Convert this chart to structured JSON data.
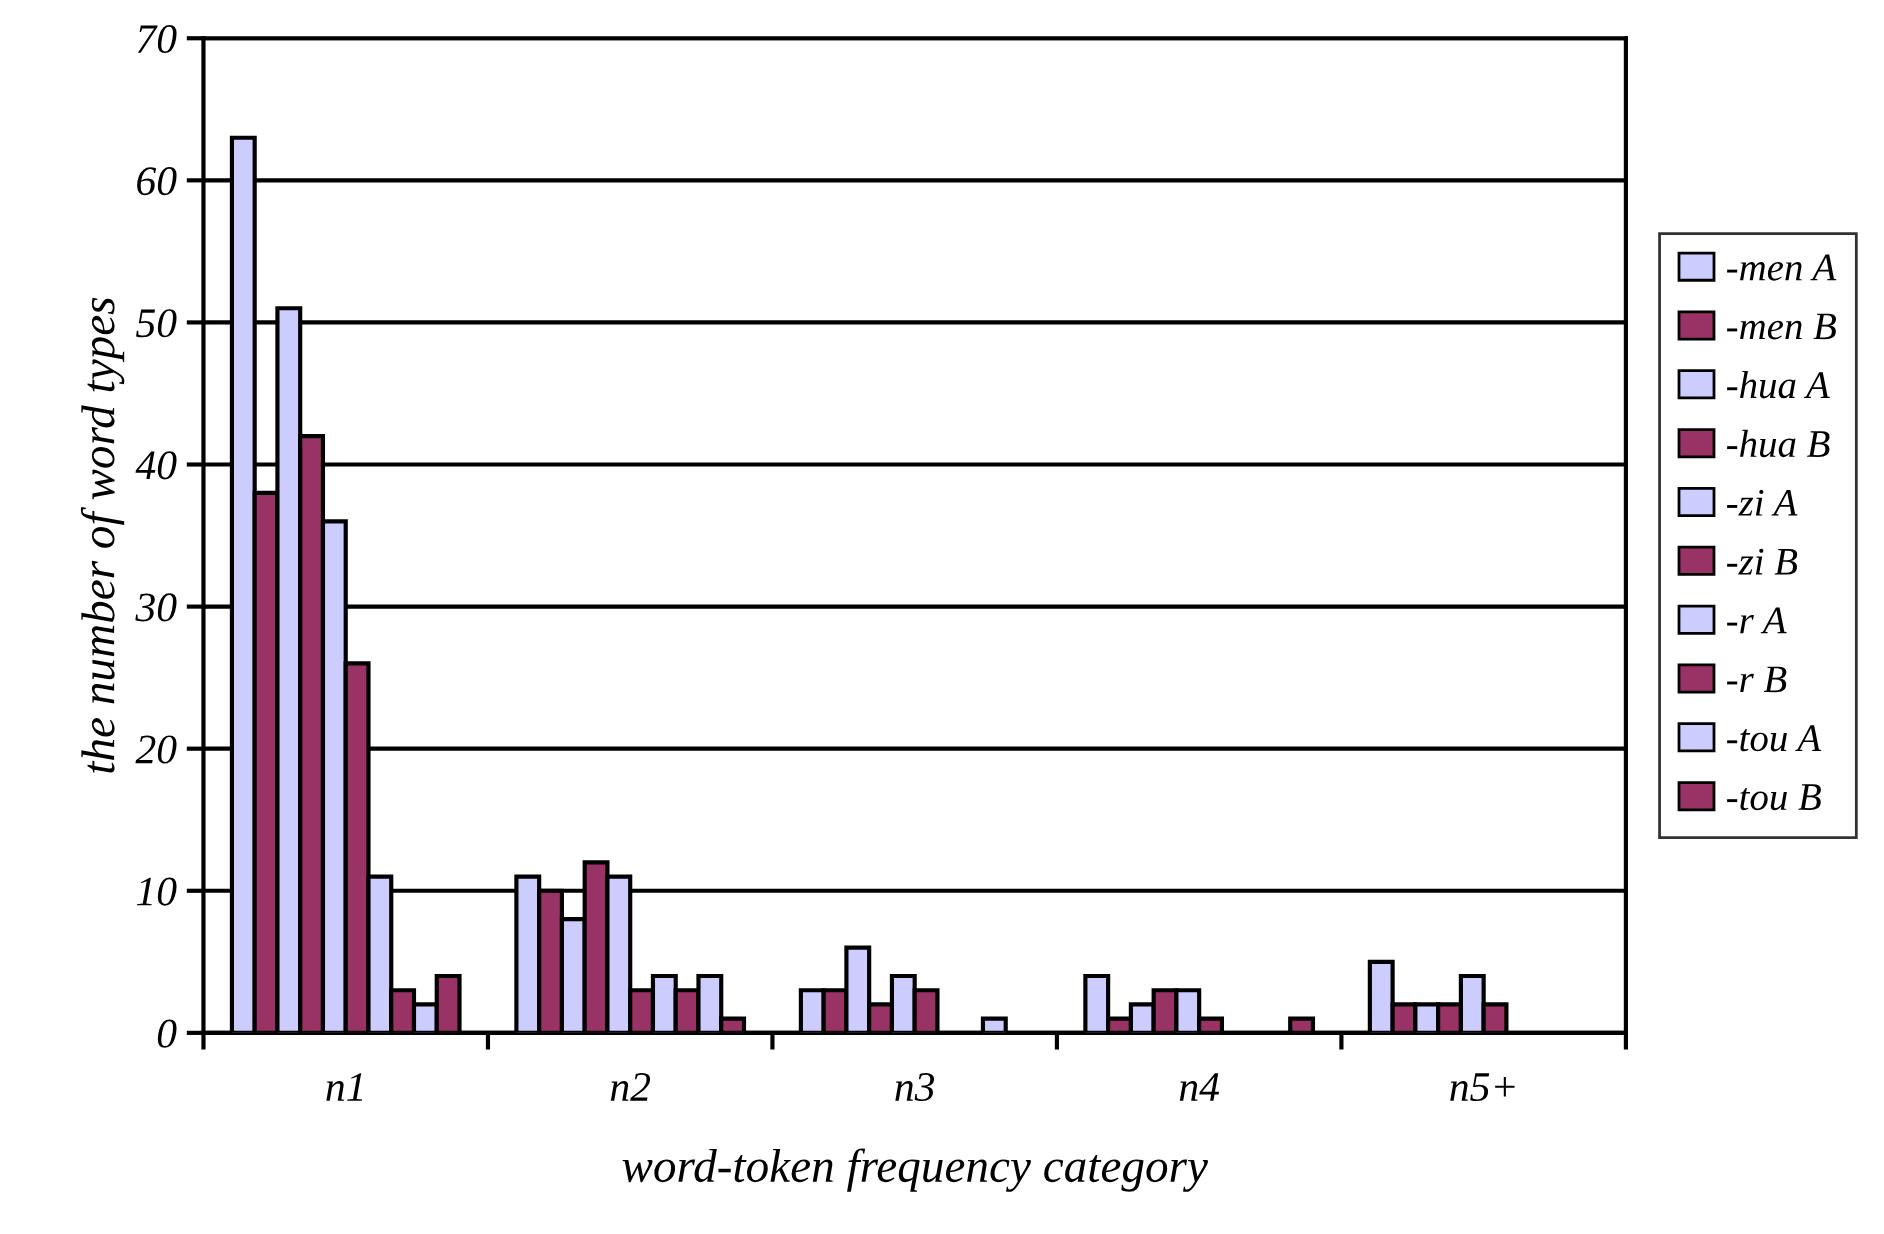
{
  "chart_data": {
    "type": "bar",
    "xlabel": "word-token frequency category",
    "ylabel": "the number of word types",
    "categories": [
      "n1",
      "n2",
      "n3",
      "n4",
      "n5+"
    ],
    "series": [
      {
        "name": "-men A",
        "color": "#ccccff",
        "values": [
          63,
          11,
          3,
          4,
          5
        ]
      },
      {
        "name": "-men B",
        "color": "#993366",
        "values": [
          38,
          10,
          3,
          1,
          2
        ]
      },
      {
        "name": "-hua A",
        "color": "#ccccff",
        "values": [
          51,
          8,
          6,
          2,
          2
        ]
      },
      {
        "name": "-hua B",
        "color": "#993366",
        "values": [
          42,
          12,
          2,
          3,
          2
        ]
      },
      {
        "name": "-zi A",
        "color": "#ccccff",
        "values": [
          36,
          11,
          4,
          3,
          4
        ]
      },
      {
        "name": "-zi B",
        "color": "#993366",
        "values": [
          26,
          3,
          3,
          1,
          2
        ]
      },
      {
        "name": "-r A",
        "color": "#ccccff",
        "values": [
          11,
          4,
          null,
          null,
          null
        ]
      },
      {
        "name": "-r B",
        "color": "#993366",
        "values": [
          3,
          3,
          null,
          null,
          null
        ]
      },
      {
        "name": "-tou A",
        "color": "#ccccff",
        "values": [
          2,
          4,
          1,
          null,
          null
        ]
      },
      {
        "name": "-tou B",
        "color": "#993366",
        "values": [
          4,
          1,
          null,
          1,
          null
        ]
      }
    ],
    "ylim": [
      0,
      70
    ],
    "yticks": [
      0,
      10,
      20,
      30,
      40,
      50,
      60,
      70
    ],
    "grid": "y",
    "legend": "right"
  }
}
